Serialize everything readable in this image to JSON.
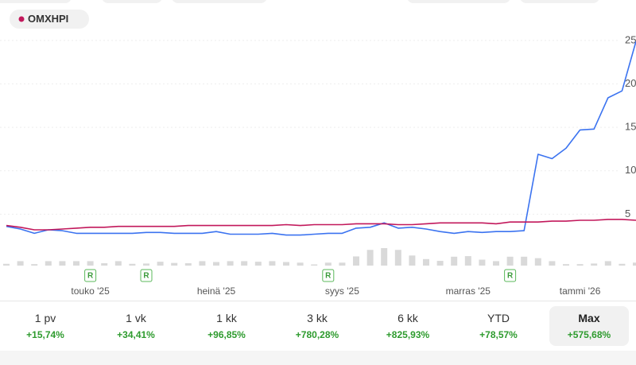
{
  "chart_data": {
    "type": "line",
    "legend_label": "OMXHPI",
    "categories": [
      null,
      null,
      null,
      null,
      null,
      null,
      "touko '25",
      null,
      null,
      null,
      null,
      null,
      null,
      null,
      null,
      "heinä '25",
      null,
      null,
      null,
      null,
      null,
      null,
      null,
      null,
      "syys '25",
      null,
      null,
      null,
      null,
      null,
      null,
      null,
      null,
      "marras '25",
      null,
      null,
      null,
      null,
      null,
      null,
      null,
      "tammi '26",
      null,
      null,
      null,
      null
    ],
    "series": [
      {
        "color": "#3b73f0",
        "values": [
          3.6,
          3.3,
          2.8,
          3.2,
          3.1,
          2.8,
          2.8,
          2.8,
          2.8,
          2.8,
          2.9,
          2.9,
          2.8,
          2.8,
          2.8,
          3.0,
          2.7,
          2.7,
          2.7,
          2.8,
          2.6,
          2.6,
          2.7,
          2.8,
          2.8,
          3.4,
          3.5,
          4.0,
          3.4,
          3.5,
          3.3,
          3.0,
          2.8,
          3.0,
          2.9,
          3.0,
          3.0,
          3.1,
          11.9,
          11.4,
          12.6,
          14.7,
          14.8,
          18.4,
          19.2,
          24.9
        ]
      },
      {
        "name": "OMXHPI",
        "color": "#c2185b",
        "values": [
          3.7,
          3.5,
          3.2,
          3.2,
          3.3,
          3.4,
          3.5,
          3.5,
          3.6,
          3.6,
          3.6,
          3.6,
          3.6,
          3.7,
          3.7,
          3.7,
          3.7,
          3.7,
          3.7,
          3.7,
          3.8,
          3.7,
          3.8,
          3.8,
          3.8,
          3.9,
          3.9,
          3.9,
          3.8,
          3.8,
          3.9,
          4.0,
          4.0,
          4.0,
          4.0,
          3.9,
          4.1,
          4.1,
          4.1,
          4.2,
          4.2,
          4.3,
          4.3,
          4.4,
          4.4,
          4.3
        ]
      }
    ],
    "volume": {
      "color": "#d9d9d9",
      "values": [
        0.6,
        1.5,
        0.5,
        1.5,
        1.5,
        1.5,
        1.5,
        0.8,
        1.5,
        0.6,
        0.7,
        1.3,
        0.9,
        0.8,
        1.5,
        1.2,
        1.5,
        1.5,
        1.3,
        1.5,
        1.2,
        1.0,
        0.4,
        1.0,
        1.0,
        3.1,
        5.3,
        5.9,
        5.3,
        3.4,
        2.2,
        1.6,
        3.0,
        3.2,
        2.0,
        1.5,
        3.0,
        3.0,
        2.5,
        1.5,
        0.5,
        0.5,
        0.7,
        1.5,
        0.6,
        1.0
      ]
    },
    "marker_label": "R",
    "ylim": [
      0,
      26
    ],
    "yticks": [
      5,
      10,
      15,
      20,
      25
    ],
    "grid": true
  },
  "periods": [
    {
      "label": "1 pv",
      "change": "+15,74%"
    },
    {
      "label": "1 vk",
      "change": "+34,41%"
    },
    {
      "label": "1 kk",
      "change": "+96,85%"
    },
    {
      "label": "3 kk",
      "change": "+780,28%"
    },
    {
      "label": "6 kk",
      "change": "+825,93%"
    },
    {
      "label": "YTD",
      "change": "+78,57%"
    },
    {
      "label": "Max",
      "change": "+575,68%",
      "selected": true
    }
  ]
}
